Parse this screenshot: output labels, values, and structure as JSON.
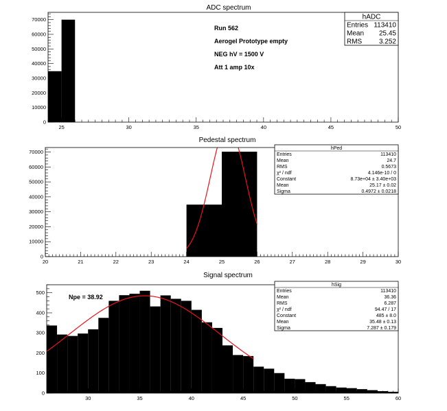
{
  "chart_data": [
    {
      "type": "bar",
      "title": "ADC spectrum",
      "xlim": [
        24,
        50
      ],
      "ylim": [
        0,
        75000
      ],
      "xticks": [
        25,
        30,
        35,
        40,
        45,
        50
      ],
      "yticks": [
        0,
        10000,
        20000,
        30000,
        40000,
        50000,
        60000,
        70000
      ],
      "bins": [
        {
          "x0": 24,
          "x1": 25,
          "value": 34800
        },
        {
          "x0": 25,
          "x1": 26,
          "value": 70000
        }
      ],
      "annotations": [
        "Run   562",
        "Aerogel Prototype empty",
        "NEG hV = 1500 V",
        "Att 1 amp 10x"
      ],
      "stats": {
        "name": "hADC",
        "rows": [
          {
            "label": "Entries",
            "value": "113410"
          },
          {
            "label": "Mean",
            "value": "25.45"
          },
          {
            "label": "RMS",
            "value": "3.252"
          }
        ]
      }
    },
    {
      "type": "bar",
      "title": "Pedestal spectrum",
      "xlim": [
        20,
        30
      ],
      "ylim": [
        0,
        73000
      ],
      "xticks": [
        20,
        21,
        22,
        23,
        24,
        25,
        26,
        27,
        28,
        29,
        30
      ],
      "yticks": [
        0,
        10000,
        20000,
        30000,
        40000,
        50000,
        60000,
        70000
      ],
      "bins": [
        {
          "x0": 24,
          "x1": 25,
          "value": 34800
        },
        {
          "x0": 25,
          "x1": 26,
          "value": 70200
        }
      ],
      "fit": {
        "constant": 87300,
        "mean": 25.17,
        "sigma": 0.4972,
        "range": [
          24,
          26
        ]
      },
      "stats": {
        "name": "hPed",
        "rows": [
          {
            "label": "Entries",
            "value": "113410"
          },
          {
            "label": "Mean",
            "value": "24.7"
          },
          {
            "label": "RMS",
            "value": "0.5673"
          },
          {
            "label": "χ² / ndf",
            "value": "4.146e-10 / 0"
          },
          {
            "label": "Constant",
            "value": "8.73e+04 ± 3.40e+03"
          },
          {
            "label": "Mean",
            "value": "25.17 ± 0.02"
          },
          {
            "label": "Sigma",
            "value": "0.4972 ± 0.0218"
          }
        ]
      }
    },
    {
      "type": "bar",
      "title": "Signal spectrum",
      "xlim": [
        26,
        60
      ],
      "ylim": [
        0,
        540
      ],
      "xticks": [
        30,
        35,
        40,
        45,
        50,
        55,
        60
      ],
      "yticks": [
        0,
        100,
        200,
        300,
        400,
        500
      ],
      "bins": [
        {
          "x0": 26,
          "x1": 27,
          "value": 337
        },
        {
          "x0": 27,
          "x1": 28,
          "value": 292
        },
        {
          "x0": 28,
          "x1": 29,
          "value": 285
        },
        {
          "x0": 29,
          "x1": 30,
          "value": 297
        },
        {
          "x0": 30,
          "x1": 31,
          "value": 318
        },
        {
          "x0": 31,
          "x1": 32,
          "value": 375
        },
        {
          "x0": 32,
          "x1": 33,
          "value": 460
        },
        {
          "x0": 33,
          "x1": 34,
          "value": 488
        },
        {
          "x0": 34,
          "x1": 35,
          "value": 495
        },
        {
          "x0": 35,
          "x1": 36,
          "value": 510
        },
        {
          "x0": 36,
          "x1": 37,
          "value": 432
        },
        {
          "x0": 37,
          "x1": 38,
          "value": 487
        },
        {
          "x0": 38,
          "x1": 39,
          "value": 470
        },
        {
          "x0": 39,
          "x1": 40,
          "value": 460
        },
        {
          "x0": 40,
          "x1": 41,
          "value": 415
        },
        {
          "x0": 41,
          "x1": 42,
          "value": 353
        },
        {
          "x0": 42,
          "x1": 43,
          "value": 325
        },
        {
          "x0": 43,
          "x1": 44,
          "value": 238
        },
        {
          "x0": 44,
          "x1": 45,
          "value": 190
        },
        {
          "x0": 45,
          "x1": 46,
          "value": 185
        },
        {
          "x0": 46,
          "x1": 47,
          "value": 132
        },
        {
          "x0": 47,
          "x1": 48,
          "value": 122
        },
        {
          "x0": 48,
          "x1": 49,
          "value": 100
        },
        {
          "x0": 49,
          "x1": 50,
          "value": 72
        },
        {
          "x0": 50,
          "x1": 51,
          "value": 70
        },
        {
          "x0": 51,
          "x1": 52,
          "value": 55
        },
        {
          "x0": 52,
          "x1": 53,
          "value": 45
        },
        {
          "x0": 53,
          "x1": 54,
          "value": 35
        },
        {
          "x0": 54,
          "x1": 55,
          "value": 28
        },
        {
          "x0": 55,
          "x1": 56,
          "value": 25
        },
        {
          "x0": 56,
          "x1": 57,
          "value": 20
        },
        {
          "x0": 57,
          "x1": 58,
          "value": 15
        },
        {
          "x0": 58,
          "x1": 59,
          "value": 10
        },
        {
          "x0": 59,
          "x1": 60,
          "value": 7
        }
      ],
      "fit": {
        "constant": 485,
        "mean": 35.48,
        "sigma": 7.287,
        "range": [
          26,
          46
        ]
      },
      "annotations": [
        "Npe = 38.92"
      ],
      "stats": {
        "name": "hSig",
        "rows": [
          {
            "label": "Entries",
            "value": "113410"
          },
          {
            "label": "Mean",
            "value": "36.36"
          },
          {
            "label": "RMS",
            "value": "6.287"
          },
          {
            "label": "χ² / ndf",
            "value": "94.47 / 17"
          },
          {
            "label": "Constant",
            "value": "485 ± 8.0"
          },
          {
            "label": "Mean",
            "value": "35.48 ± 0.13"
          },
          {
            "label": "Sigma",
            "value": "7.287 ± 0.179"
          }
        ]
      }
    }
  ],
  "colors": {
    "bars": "#000000",
    "fit": "#e8141c",
    "frame": "#000000",
    "background": "#ffffff"
  }
}
